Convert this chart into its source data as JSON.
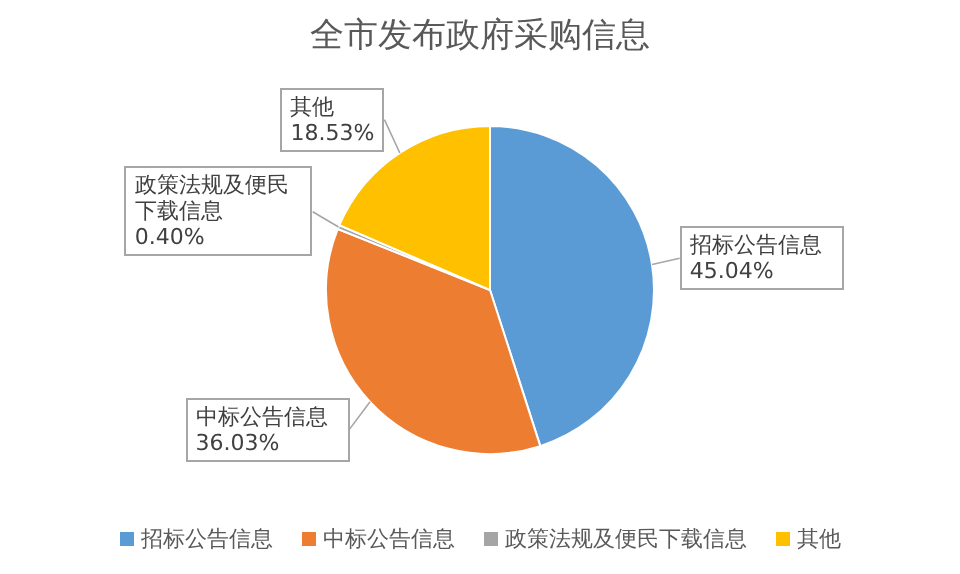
{
  "chart_data": {
    "type": "pie",
    "title": "全市发布政府采购信息",
    "categories": [
      "招标公告信息",
      "中标公告信息",
      "政策法规及便民下载信息",
      "其他"
    ],
    "values": [
      45.04,
      36.03,
      0.4,
      18.53
    ],
    "value_labels": [
      "45.04%",
      "36.03%",
      "0.40%",
      "18.53%"
    ],
    "colors": [
      "#5b9bd5",
      "#ed7d31",
      "#a5a5a5",
      "#ffc000"
    ],
    "legend": "bottom"
  }
}
